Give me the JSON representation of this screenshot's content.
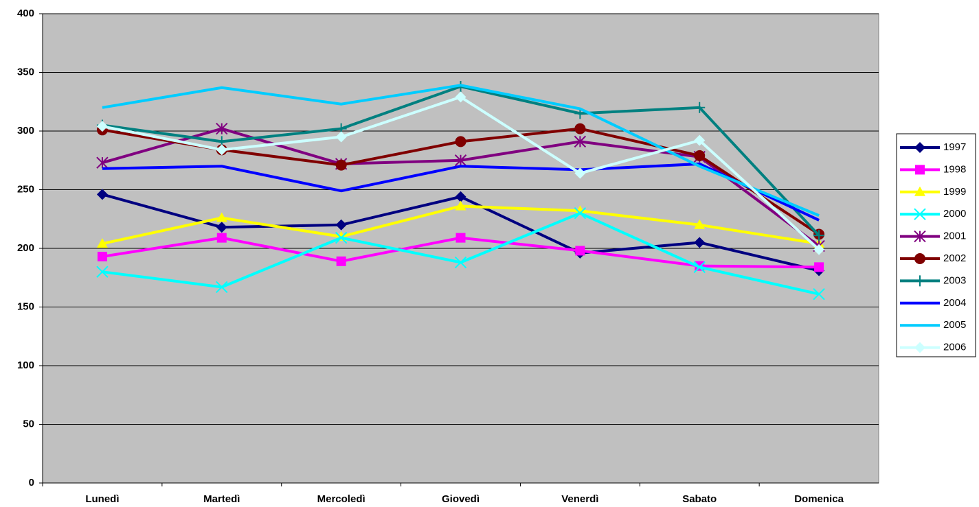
{
  "chart_data": {
    "type": "line",
    "categories": [
      "Lunedì",
      "Martedì",
      "Mercoledì",
      "Giovedì",
      "Venerdì",
      "Sabato",
      "Domenica"
    ],
    "ylim": [
      0,
      400
    ],
    "yticks": [
      0,
      50,
      100,
      150,
      200,
      250,
      300,
      350,
      400
    ],
    "grid": true,
    "legend": "right",
    "series": [
      {
        "name": "1997",
        "color": "#000080",
        "marker": "diamond",
        "values": [
          246,
          218,
          220,
          244,
          196,
          205,
          181
        ]
      },
      {
        "name": "1998",
        "color": "#ff00ff",
        "marker": "square",
        "values": [
          193,
          209,
          189,
          209,
          198,
          185,
          184
        ]
      },
      {
        "name": "1999",
        "color": "#ffff00",
        "marker": "triangle",
        "values": [
          204,
          226,
          210,
          236,
          232,
          220,
          204
        ]
      },
      {
        "name": "2000",
        "color": "#00ffff",
        "marker": "x",
        "values": [
          180,
          167,
          209,
          188,
          230,
          184,
          161
        ]
      },
      {
        "name": "2001",
        "color": "#800080",
        "marker": "star",
        "values": [
          273,
          302,
          272,
          275,
          291,
          278,
          202
        ]
      },
      {
        "name": "2002",
        "color": "#800000",
        "marker": "circle",
        "values": [
          301,
          284,
          271,
          291,
          302,
          279,
          212
        ]
      },
      {
        "name": "2003",
        "color": "#008080",
        "marker": "plus",
        "values": [
          305,
          291,
          302,
          338,
          315,
          320,
          211
        ]
      },
      {
        "name": "2004",
        "color": "#0000ff",
        "marker": "none",
        "values": [
          268,
          270,
          249,
          270,
          267,
          272,
          224
        ]
      },
      {
        "name": "2005",
        "color": "#00ccff",
        "marker": "none",
        "values": [
          320,
          337,
          323,
          339,
          319,
          270,
          228
        ]
      },
      {
        "name": "2006",
        "color": "#ccffff",
        "marker": "diamond",
        "values": [
          304,
          284,
          295,
          329,
          264,
          292,
          199
        ]
      }
    ]
  }
}
